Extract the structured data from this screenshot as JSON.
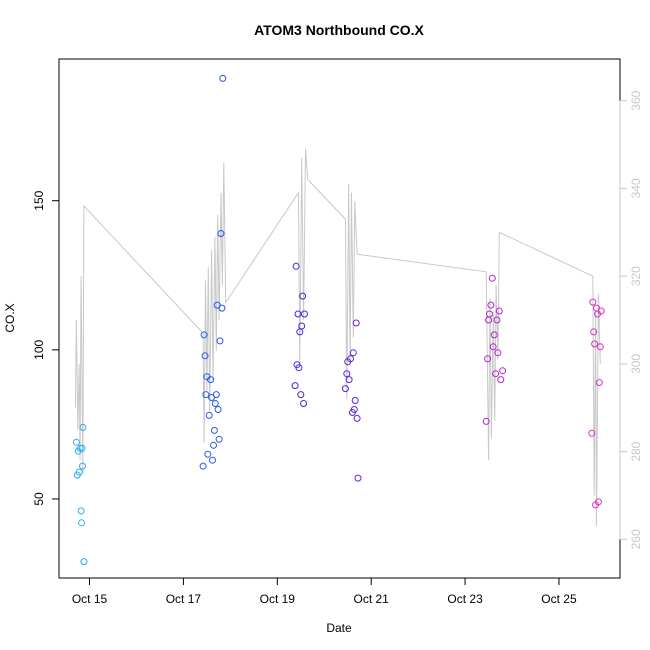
{
  "chart_data": {
    "type": "scatter",
    "title": "ATOM3 Northbound CO.X",
    "xlabel": "Date",
    "ylabel": "CO.X",
    "xlim": [
      14.35,
      26.3
    ],
    "ylim": [
      23.5,
      197.5
    ],
    "y2lim": [
      251.2,
      369.5
    ],
    "x_ticks": [
      {
        "x": 15,
        "label": "Oct 15"
      },
      {
        "x": 17,
        "label": "Oct 17"
      },
      {
        "x": 19,
        "label": "Oct 19"
      },
      {
        "x": 21,
        "label": "Oct 21"
      },
      {
        "x": 23,
        "label": "Oct 23"
      },
      {
        "x": 25,
        "label": "Oct 25"
      }
    ],
    "y_ticks": [
      50,
      100,
      150
    ],
    "y2_ticks": [
      260,
      280,
      300,
      320,
      340,
      360
    ],
    "grid": false,
    "legend": "none",
    "series": [
      {
        "kind": "line",
        "axis": "right",
        "color": "#c8c8c8",
        "points": [
          [
            14.7,
            290
          ],
          [
            14.72,
            310
          ],
          [
            14.75,
            285
          ],
          [
            14.78,
            300
          ],
          [
            14.8,
            278
          ],
          [
            14.82,
            320
          ],
          [
            14.86,
            275
          ],
          [
            14.88,
            336
          ],
          [
            17.42,
            307
          ],
          [
            17.44,
            282
          ],
          [
            17.47,
            319
          ],
          [
            17.5,
            294
          ],
          [
            17.53,
            322
          ],
          [
            17.56,
            289
          ],
          [
            17.6,
            326
          ],
          [
            17.63,
            296
          ],
          [
            17.67,
            329
          ],
          [
            17.7,
            303
          ],
          [
            17.73,
            334
          ],
          [
            17.76,
            310
          ],
          [
            17.8,
            339
          ],
          [
            17.83,
            318
          ],
          [
            17.86,
            346
          ],
          [
            17.9,
            314
          ],
          [
            19.45,
            339
          ],
          [
            19.48,
            300
          ],
          [
            19.52,
            347
          ],
          [
            19.56,
            310
          ],
          [
            19.6,
            349
          ],
          [
            19.65,
            342
          ],
          [
            20.45,
            333
          ],
          [
            20.48,
            292
          ],
          [
            20.52,
            341
          ],
          [
            20.55,
            300
          ],
          [
            20.58,
            339
          ],
          [
            20.62,
            306
          ],
          [
            20.65,
            337
          ],
          [
            20.7,
            325
          ],
          [
            23.45,
            321
          ],
          [
            23.5,
            278
          ],
          [
            23.53,
            315
          ],
          [
            23.56,
            283
          ],
          [
            23.6,
            312
          ],
          [
            23.63,
            287
          ],
          [
            23.66,
            318
          ],
          [
            23.7,
            301
          ],
          [
            23.73,
            330
          ],
          [
            25.72,
            320
          ],
          [
            25.75,
            270
          ],
          [
            25.78,
            312
          ],
          [
            25.8,
            263
          ],
          [
            25.84,
            316
          ],
          [
            25.88,
            300
          ]
        ]
      },
      {
        "kind": "points",
        "axis": "left",
        "color_ramp": [
          "#2fb0f0",
          "#1f6ef0",
          "#3a2ae0",
          "#7a20d8",
          "#b825d0",
          "#e030c8"
        ],
        "points": [
          [
            14.72,
            69
          ],
          [
            14.74,
            58
          ],
          [
            14.76,
            66
          ],
          [
            14.78,
            59
          ],
          [
            14.8,
            67
          ],
          [
            14.82,
            46
          ],
          [
            14.83,
            42
          ],
          [
            14.85,
            61
          ],
          [
            14.86,
            74
          ],
          [
            14.88,
            29
          ],
          [
            14.84,
            67
          ],
          [
            17.42,
            61
          ],
          [
            17.44,
            105
          ],
          [
            17.46,
            98
          ],
          [
            17.48,
            85
          ],
          [
            17.5,
            91
          ],
          [
            17.52,
            65
          ],
          [
            17.55,
            78
          ],
          [
            17.58,
            90
          ],
          [
            17.6,
            84
          ],
          [
            17.62,
            63
          ],
          [
            17.64,
            68
          ],
          [
            17.66,
            73
          ],
          [
            17.68,
            82
          ],
          [
            17.7,
            85
          ],
          [
            17.72,
            115
          ],
          [
            17.74,
            80
          ],
          [
            17.76,
            70
          ],
          [
            17.78,
            103
          ],
          [
            17.8,
            139
          ],
          [
            17.82,
            114
          ],
          [
            17.84,
            191
          ],
          [
            19.38,
            88
          ],
          [
            19.4,
            128
          ],
          [
            19.42,
            95
          ],
          [
            19.44,
            112
          ],
          [
            19.46,
            94
          ],
          [
            19.48,
            106
          ],
          [
            19.5,
            85
          ],
          [
            19.52,
            108
          ],
          [
            19.54,
            118
          ],
          [
            19.56,
            82
          ],
          [
            19.58,
            112
          ],
          [
            20.45,
            87
          ],
          [
            20.48,
            92
          ],
          [
            20.5,
            96
          ],
          [
            20.53,
            90
          ],
          [
            20.56,
            97
          ],
          [
            20.6,
            79
          ],
          [
            20.62,
            99
          ],
          [
            20.64,
            80
          ],
          [
            20.66,
            83
          ],
          [
            20.68,
            109
          ],
          [
            20.7,
            77
          ],
          [
            20.72,
            57
          ],
          [
            23.45,
            76
          ],
          [
            23.48,
            97
          ],
          [
            23.5,
            110
          ],
          [
            23.52,
            112
          ],
          [
            23.55,
            115
          ],
          [
            23.58,
            124
          ],
          [
            23.6,
            101
          ],
          [
            23.62,
            105
          ],
          [
            23.65,
            92
          ],
          [
            23.68,
            110
          ],
          [
            23.7,
            99
          ],
          [
            23.73,
            113
          ],
          [
            23.76,
            90
          ],
          [
            23.8,
            93
          ],
          [
            25.7,
            72
          ],
          [
            25.72,
            116
          ],
          [
            25.74,
            106
          ],
          [
            25.76,
            102
          ],
          [
            25.78,
            48
          ],
          [
            25.8,
            114
          ],
          [
            25.82,
            112
          ],
          [
            25.84,
            49
          ],
          [
            25.86,
            89
          ],
          [
            25.88,
            101
          ],
          [
            25.9,
            113
          ]
        ]
      }
    ]
  }
}
